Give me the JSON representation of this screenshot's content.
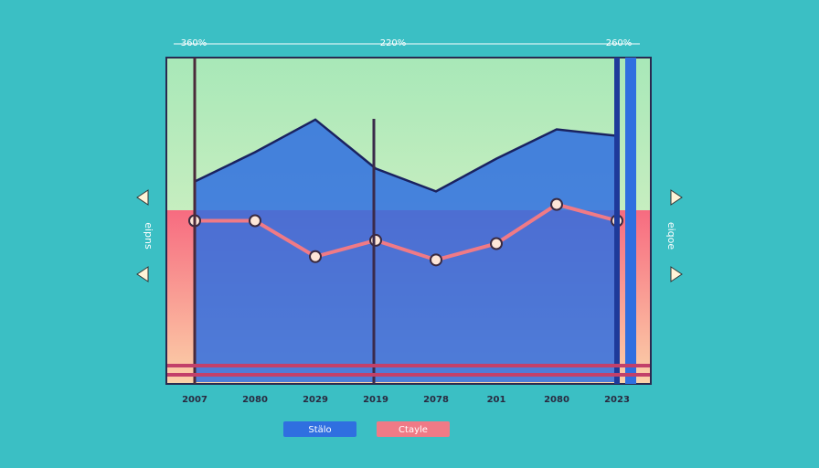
{
  "chart_data": {
    "type": "line",
    "annotations": [
      "360%",
      "220%",
      "260%"
    ],
    "side_labels": [
      "eipns",
      "eiqoe"
    ],
    "categories": [
      "2007",
      "2080",
      "2029",
      "2019",
      "2078",
      "201",
      "2080",
      "2023"
    ],
    "series": [
      {
        "name": "Stälo",
        "color": "#2f6fe0",
        "values": [
          62,
          71,
          81,
          66,
          59,
          69,
          78,
          76
        ]
      },
      {
        "name": "Ctayle",
        "color": "#f07a86",
        "values": [
          50,
          50,
          39,
          44,
          38,
          43,
          55,
          50
        ]
      }
    ],
    "ylim": [
      0,
      100
    ]
  }
}
